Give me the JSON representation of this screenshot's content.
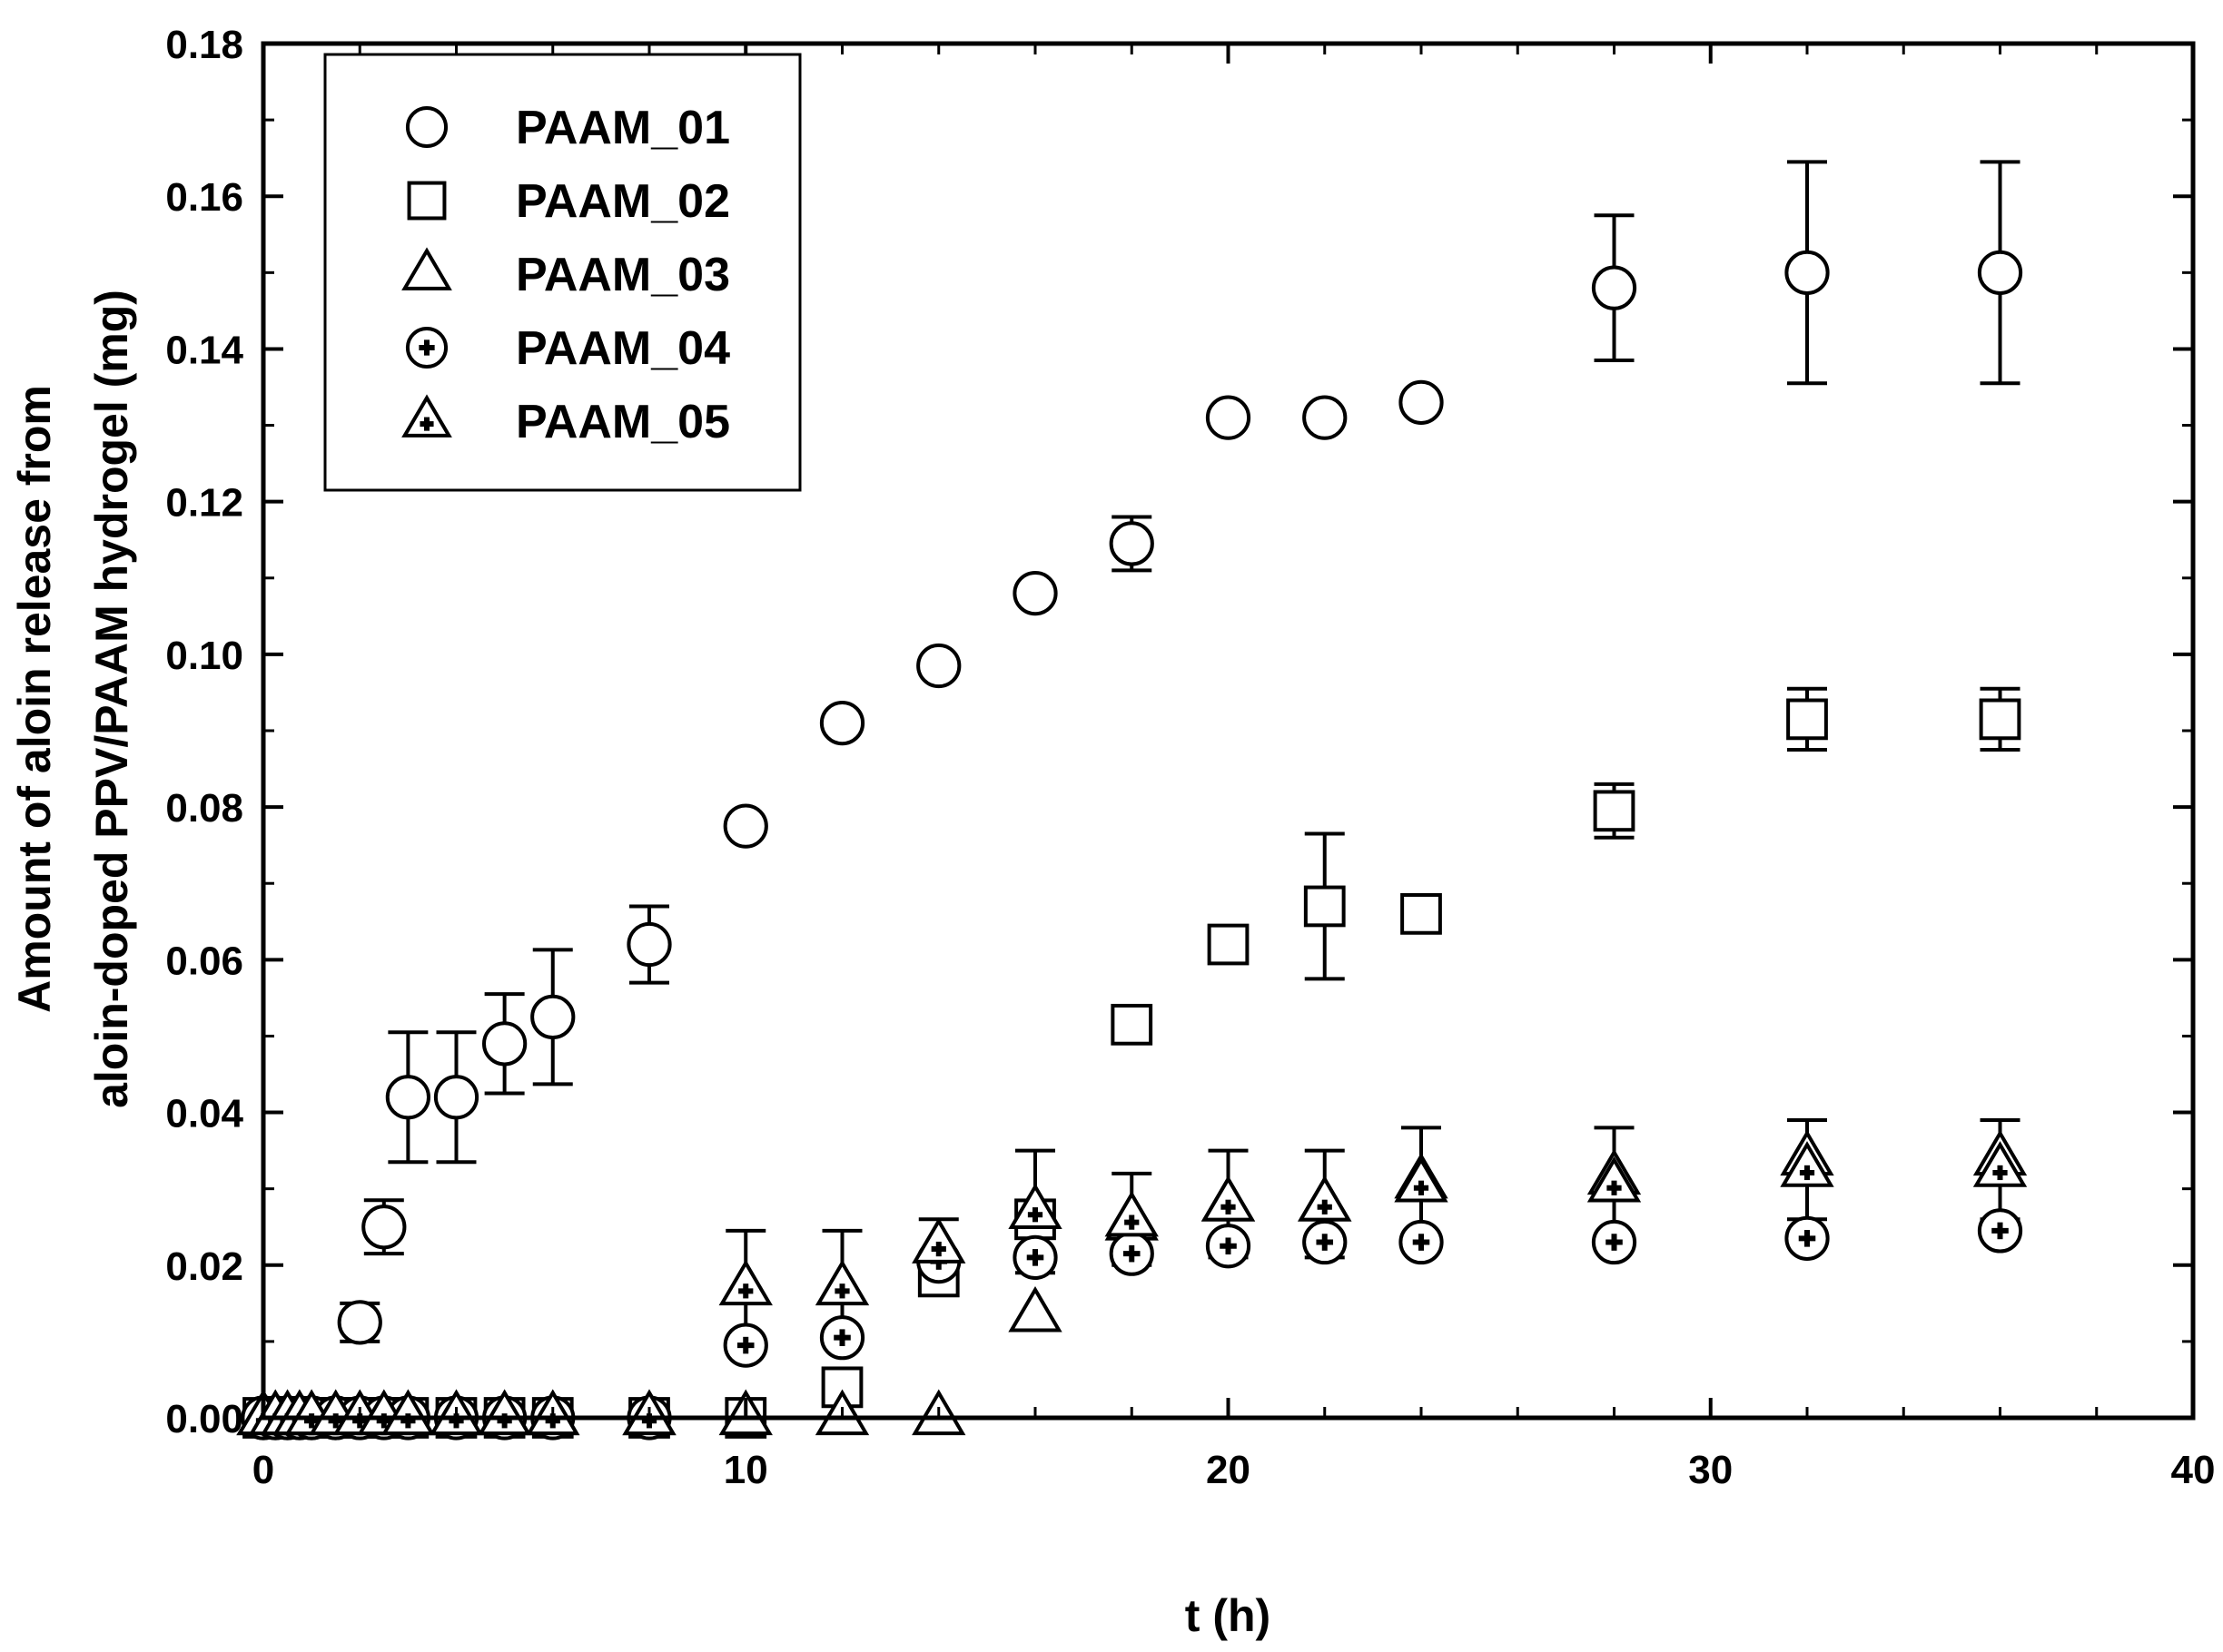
{
  "chart_data": {
    "type": "scatter",
    "xlabel": "t (h)",
    "ylabel_lines": [
      "Amount of aloin release  from",
      "aloin-doped PPV/PAAM hydrogel (mg)"
    ],
    "xlim": [
      0,
      40
    ],
    "ylim": [
      0,
      0.18
    ],
    "x_ticks": [
      0,
      10,
      20,
      30,
      40
    ],
    "x_tick_labels": [
      "0",
      "10",
      "20",
      "30",
      "40"
    ],
    "y_ticks": [
      0,
      0.02,
      0.04,
      0.06,
      0.08,
      0.1,
      0.12,
      0.14,
      0.16,
      0.18
    ],
    "y_tick_labels": [
      "0.00",
      "0.02",
      "0.04",
      "0.06",
      "0.08",
      "0.10",
      "0.12",
      "0.14",
      "0.16",
      "0.18"
    ],
    "grid": false,
    "legend_position": "top-left",
    "series": [
      {
        "name": "PAAM_01",
        "marker": "circle",
        "points": [
          {
            "x": 0,
            "y": 0
          },
          {
            "x": 0.25,
            "y": 0
          },
          {
            "x": 0.5,
            "y": 0
          },
          {
            "x": 0.75,
            "y": 0
          },
          {
            "x": 1,
            "y": 0
          },
          {
            "x": 1.5,
            "y": 0
          },
          {
            "x": 2,
            "y": 0.0125,
            "err": 0.0025
          },
          {
            "x": 2.5,
            "y": 0.025,
            "err": 0.0035
          },
          {
            "x": 3,
            "y": 0.042,
            "err": 0.0085
          },
          {
            "x": 4,
            "y": 0.042,
            "err": 0.0085
          },
          {
            "x": 5,
            "y": 0.049,
            "err": 0.0065
          },
          {
            "x": 6,
            "y": 0.0525,
            "err": 0.0088
          },
          {
            "x": 8,
            "y": 0.062,
            "err": 0.005
          },
          {
            "x": 10,
            "y": 0.0775
          },
          {
            "x": 12,
            "y": 0.091
          },
          {
            "x": 14,
            "y": 0.0985
          },
          {
            "x": 16,
            "y": 0.108
          },
          {
            "x": 18,
            "y": 0.1145,
            "err": 0.0035
          },
          {
            "x": 20,
            "y": 0.131
          },
          {
            "x": 22,
            "y": 0.131
          },
          {
            "x": 24,
            "y": 0.133
          },
          {
            "x": 28,
            "y": 0.148,
            "err": 0.0095
          },
          {
            "x": 32,
            "y": 0.15,
            "err": 0.0145
          },
          {
            "x": 36,
            "y": 0.15,
            "err": 0.0145
          }
        ]
      },
      {
        "name": "PAAM_02",
        "marker": "square",
        "points": [
          {
            "x": 0,
            "y": 0
          },
          {
            "x": 0.25,
            "y": 0
          },
          {
            "x": 0.5,
            "y": 0
          },
          {
            "x": 0.75,
            "y": 0
          },
          {
            "x": 1,
            "y": 0
          },
          {
            "x": 1.5,
            "y": 0
          },
          {
            "x": 2,
            "y": 0
          },
          {
            "x": 2.5,
            "y": 0
          },
          {
            "x": 3,
            "y": 0
          },
          {
            "x": 4,
            "y": 0
          },
          {
            "x": 5,
            "y": 0
          },
          {
            "x": 6,
            "y": 0
          },
          {
            "x": 8,
            "y": 0
          },
          {
            "x": 10,
            "y": 0
          },
          {
            "x": 12,
            "y": 0.004
          },
          {
            "x": 14,
            "y": 0.0185
          },
          {
            "x": 16,
            "y": 0.026
          },
          {
            "x": 18,
            "y": 0.0515
          },
          {
            "x": 20,
            "y": 0.062,
            "err": 0.0015
          },
          {
            "x": 22,
            "y": 0.067,
            "err": 0.0095
          },
          {
            "x": 24,
            "y": 0.066,
            "err": 0.0015
          },
          {
            "x": 28,
            "y": 0.0795,
            "err": 0.0035
          },
          {
            "x": 32,
            "y": 0.0915,
            "err": 0.004
          },
          {
            "x": 36,
            "y": 0.0915,
            "err": 0.004
          }
        ]
      },
      {
        "name": "PAAM_03",
        "marker": "triangle",
        "points": [
          {
            "x": 0,
            "y": 0
          },
          {
            "x": 0.25,
            "y": 0
          },
          {
            "x": 0.5,
            "y": 0
          },
          {
            "x": 0.75,
            "y": 0
          },
          {
            "x": 1,
            "y": 0
          },
          {
            "x": 1.5,
            "y": 0
          },
          {
            "x": 2,
            "y": 0
          },
          {
            "x": 2.5,
            "y": 0
          },
          {
            "x": 3,
            "y": 0
          },
          {
            "x": 4,
            "y": 0
          },
          {
            "x": 5,
            "y": 0
          },
          {
            "x": 6,
            "y": 0
          },
          {
            "x": 8,
            "y": 0
          },
          {
            "x": 10,
            "y": 0
          },
          {
            "x": 12,
            "y": 0
          },
          {
            "x": 14,
            "y": 0
          },
          {
            "x": 16,
            "y": 0.0135
          },
          {
            "x": 18,
            "y": 0.0255
          },
          {
            "x": 20,
            "y": 0.028
          },
          {
            "x": 22,
            "y": 0.028
          },
          {
            "x": 24,
            "y": 0.031
          },
          {
            "x": 28,
            "y": 0.0315
          },
          {
            "x": 32,
            "y": 0.034
          },
          {
            "x": 36,
            "y": 0.034
          }
        ]
      },
      {
        "name": "PAAM_04",
        "marker": "circle-plus",
        "points": [
          {
            "x": 0,
            "y": 0
          },
          {
            "x": 0.25,
            "y": 0
          },
          {
            "x": 0.5,
            "y": 0
          },
          {
            "x": 0.75,
            "y": 0
          },
          {
            "x": 1,
            "y": 0
          },
          {
            "x": 1.5,
            "y": 0
          },
          {
            "x": 2,
            "y": 0
          },
          {
            "x": 2.5,
            "y": 0
          },
          {
            "x": 3,
            "y": 0
          },
          {
            "x": 4,
            "y": 0
          },
          {
            "x": 5,
            "y": 0
          },
          {
            "x": 6,
            "y": 0
          },
          {
            "x": 8,
            "y": 0
          },
          {
            "x": 10,
            "y": 0.0095
          },
          {
            "x": 12,
            "y": 0.0105
          },
          {
            "x": 14,
            "y": 0.0205
          },
          {
            "x": 16,
            "y": 0.021
          },
          {
            "x": 18,
            "y": 0.0215
          },
          {
            "x": 20,
            "y": 0.0225
          },
          {
            "x": 22,
            "y": 0.023
          },
          {
            "x": 24,
            "y": 0.023
          },
          {
            "x": 28,
            "y": 0.023
          },
          {
            "x": 32,
            "y": 0.0235
          },
          {
            "x": 36,
            "y": 0.0245
          }
        ]
      },
      {
        "name": "PAAM_05",
        "marker": "triangle-plus",
        "points": [
          {
            "x": 0,
            "y": 0
          },
          {
            "x": 0.25,
            "y": 0
          },
          {
            "x": 0.5,
            "y": 0
          },
          {
            "x": 0.75,
            "y": 0
          },
          {
            "x": 1,
            "y": 0
          },
          {
            "x": 1.5,
            "y": 0
          },
          {
            "x": 2,
            "y": 0
          },
          {
            "x": 2.5,
            "y": 0
          },
          {
            "x": 3,
            "y": 0
          },
          {
            "x": 4,
            "y": 0
          },
          {
            "x": 5,
            "y": 0
          },
          {
            "x": 6,
            "y": 0
          },
          {
            "x": 8,
            "y": 0
          },
          {
            "x": 10,
            "y": 0.017,
            "err": 0.0075
          },
          {
            "x": 12,
            "y": 0.017,
            "err": 0.0075
          },
          {
            "x": 14,
            "y": 0.0225,
            "err": 0.0035
          },
          {
            "x": 16,
            "y": 0.027,
            "err": 0.008
          },
          {
            "x": 18,
            "y": 0.026,
            "err": 0.006
          },
          {
            "x": 20,
            "y": 0.028,
            "err": 0.007
          },
          {
            "x": 22,
            "y": 0.028,
            "err": 0.007
          },
          {
            "x": 24,
            "y": 0.0305,
            "err": 0.0075
          },
          {
            "x": 28,
            "y": 0.0305,
            "err": 0.0075
          },
          {
            "x": 32,
            "y": 0.0325,
            "err": 0.0065
          },
          {
            "x": 36,
            "y": 0.0325,
            "err": 0.0065
          }
        ]
      }
    ]
  }
}
